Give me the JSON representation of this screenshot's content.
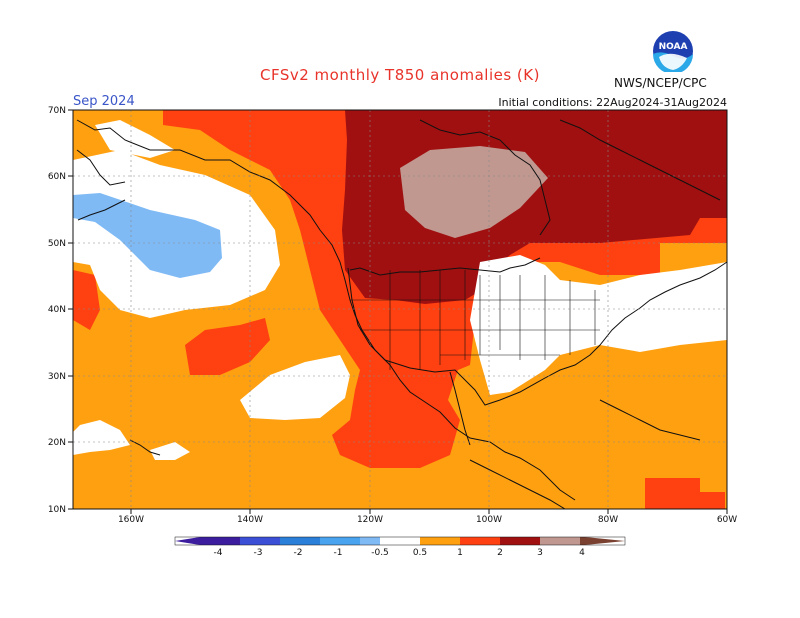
{
  "title": "CFSv2 monthly T850 anomalies (K)",
  "month": "Sep 2024",
  "initial_conditions": "Initial conditions: 22Aug2024-31Aug2024",
  "agency": "NWS/NCEP/CPC",
  "logo_text": "NOAA",
  "lat_labels": [
    "70N",
    "60N",
    "50N",
    "40N",
    "30N",
    "20N",
    "10N"
  ],
  "lon_labels": [
    "160W",
    "140W",
    "120W",
    "100W",
    "80W",
    "60W"
  ],
  "colorbar_labels": [
    "-4",
    "-3",
    "-2",
    "-1",
    "-0.5",
    "0.5",
    "1",
    "2",
    "3",
    "4"
  ],
  "colors": {
    "neg4": "#3b1d9e",
    "neg3": "#3a4fd6",
    "neg2": "#2a7fd8",
    "neg1": "#4aa3ee",
    "neg05": "#7fbaf5",
    "white": "#ffffff",
    "pos05": "#ffa010",
    "pos1": "#ff4010",
    "pos2": "#b0150d",
    "pos3": "#a01010",
    "pos4": "#c09890",
    "pos5": "#7a4030",
    "title": "#e8332a",
    "month": "#3a55c8"
  }
}
